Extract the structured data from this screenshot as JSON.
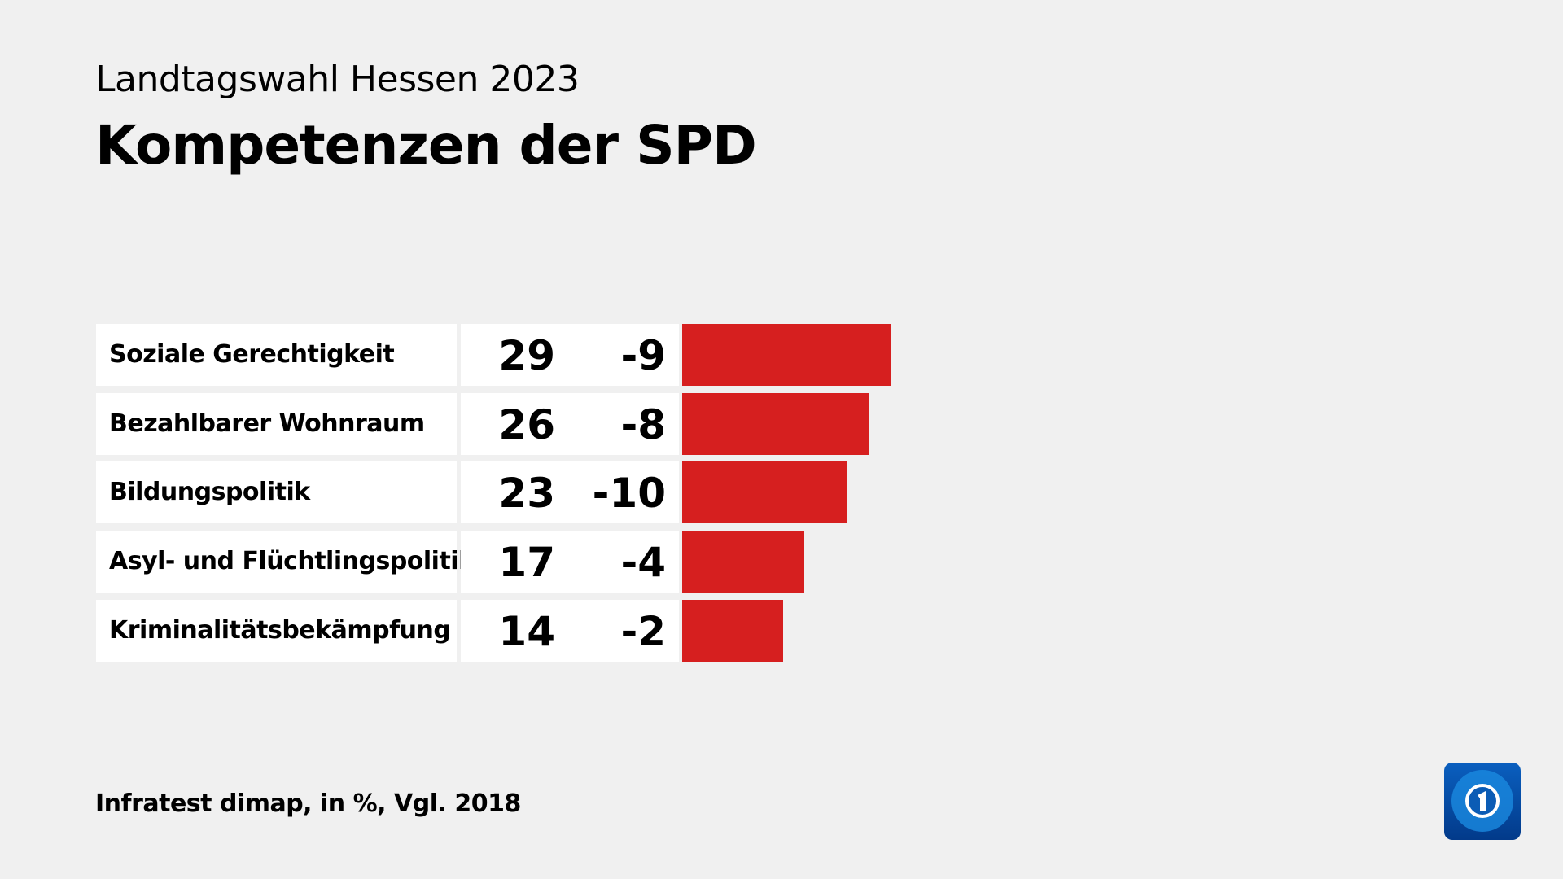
{
  "header": {
    "subtitle": "Landtagswahl Hessen 2023",
    "title": "Kompetenzen der SPD"
  },
  "chart_data": {
    "type": "bar",
    "orientation": "horizontal",
    "title": "Kompetenzen der SPD",
    "subtitle": "Landtagswahl Hessen 2023",
    "categories": [
      "Soziale Gerechtigkeit",
      "Bezahlbarer Wohnraum",
      "Bildungspolitik",
      "Asyl- und Flüchtlingspolitik",
      "Kriminalitätsbekämpfung"
    ],
    "values": [
      29,
      26,
      23,
      17,
      14
    ],
    "changes": [
      "-9",
      "-8",
      "-10",
      "-4",
      "-2"
    ],
    "bar_color": "#d61f1f",
    "grid": false
  },
  "footer": {
    "source": "Infratest dimap, in %, Vgl. 2018"
  },
  "logo": {
    "text": "1"
  }
}
